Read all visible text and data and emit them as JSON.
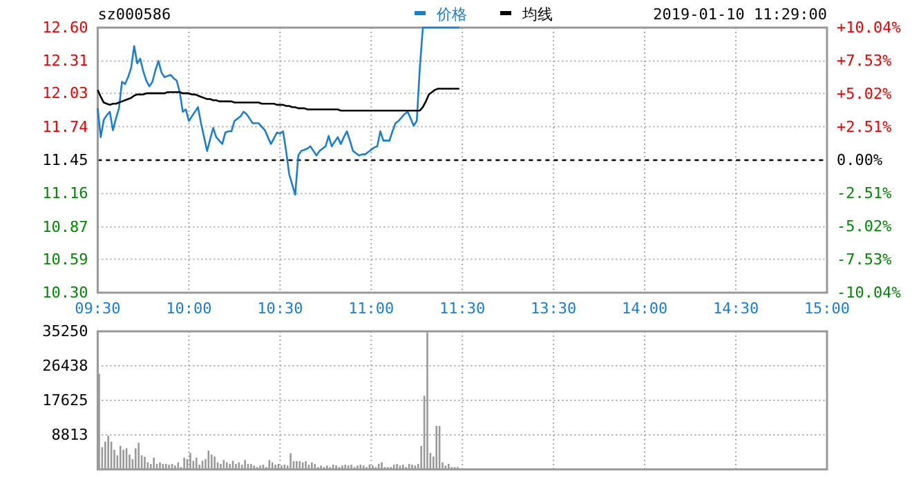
{
  "chart_data": [
    {
      "type": "line",
      "title": "sz000586",
      "subtitle": "2019-01-10 11:29:00",
      "legend": "top",
      "categories": [
        "09:30",
        null,
        null,
        null,
        null,
        null,
        null,
        null,
        null,
        null,
        null,
        null,
        null,
        null,
        null,
        null,
        null,
        null,
        null,
        null,
        null,
        null,
        null,
        null,
        null,
        null,
        null,
        null,
        null,
        null,
        "10:00",
        null,
        null,
        null,
        null,
        null,
        null,
        null,
        null,
        null,
        null,
        null,
        null,
        null,
        null,
        null,
        null,
        null,
        null,
        null,
        null,
        null,
        null,
        null,
        null,
        null,
        null,
        null,
        null,
        null,
        "10:30",
        null,
        null,
        null,
        null,
        null,
        null,
        null,
        null,
        null,
        null,
        null,
        null,
        null,
        null,
        null,
        null,
        null,
        null,
        null,
        null,
        null,
        null,
        null,
        null,
        null,
        null,
        null,
        null,
        null,
        "11:00",
        null,
        null,
        null,
        null,
        null,
        null,
        null,
        null,
        null,
        null,
        null,
        null,
        null,
        null,
        null,
        null,
        null,
        null,
        null,
        null,
        null,
        null,
        null,
        null,
        null,
        null,
        null,
        null,
        null,
        "11:30",
        null,
        null,
        null,
        null,
        null,
        null,
        null,
        null,
        null,
        null,
        null,
        null,
        null,
        null,
        null,
        null,
        null,
        null,
        null,
        null,
        null,
        null,
        null,
        null,
        null,
        null,
        null,
        null,
        null,
        "13:30",
        null,
        null,
        null,
        null,
        null,
        null,
        null,
        null,
        null,
        null,
        null,
        null,
        null,
        null,
        null,
        null,
        null,
        null,
        null,
        null,
        null,
        null,
        null,
        null,
        null,
        null,
        null,
        null,
        null,
        "14:00",
        null,
        null,
        null,
        null,
        null,
        null,
        null,
        null,
        null,
        null,
        null,
        null,
        null,
        null,
        null,
        null,
        null,
        null,
        null,
        null,
        null,
        null,
        null,
        null,
        null,
        null,
        null,
        null,
        null,
        "14:30",
        null,
        null,
        null,
        null,
        null,
        null,
        null,
        null,
        null,
        null,
        null,
        null,
        null,
        null,
        null,
        null,
        null,
        null,
        null,
        null,
        null,
        null,
        null,
        null,
        null,
        null,
        null,
        null,
        null,
        "15:00"
      ],
      "ylim": [
        10.3,
        12.6
      ],
      "yticks": [
        {
          "value": 10.3,
          "label": "10.30"
        },
        10.59,
        10.87,
        11.16,
        11.45,
        11.74,
        12.03,
        12.31,
        {
          "value": 12.6,
          "label": "12.60"
        }
      ],
      "y2lim": [
        -10.04,
        10.04
      ],
      "y2ticks": [
        {
          "value": -10.04,
          "label": "-10.04%"
        },
        {
          "value": -7.53,
          "label": "-7.53%"
        },
        {
          "value": -5.02,
          "label": "-5.02%"
        },
        {
          "value": -2.51,
          "label": "-2.51%"
        },
        {
          "value": 0,
          "label": "0.00%"
        },
        {
          "value": 2.51,
          "label": "+2.51%"
        },
        {
          "value": 5.02,
          "label": "+5.02%"
        },
        {
          "value": 7.53,
          "label": "+7.53%"
        },
        {
          "value": 10.04,
          "label": "+10.04%"
        }
      ],
      "grid": true,
      "ref_lines": [
        {
          "axis": "y",
          "value": 11.45,
          "color": "#000000",
          "line_style": "dashed"
        }
      ],
      "series": [
        {
          "name": "价格",
          "color": "#1a7fd0",
          "values": [
            11.9,
            11.65,
            11.8,
            11.84,
            11.87,
            11.71,
            11.81,
            11.9,
            12.13,
            12.11,
            12.17,
            12.25,
            12.44,
            12.29,
            12.33,
            12.22,
            12.14,
            12.09,
            12.13,
            12.23,
            12.31,
            12.21,
            12.17,
            12.18,
            12.19,
            12.16,
            12.14,
            12.04,
            11.87,
            11.89,
            11.79,
            11.83,
            11.87,
            11.91,
            11.77,
            11.65,
            11.53,
            11.63,
            11.73,
            11.65,
            11.62,
            11.59,
            11.69,
            11.7,
            11.7,
            11.79,
            11.81,
            11.83,
            11.87,
            11.85,
            11.81,
            11.77,
            11.77,
            11.77,
            11.74,
            11.71,
            11.65,
            11.59,
            11.64,
            11.69,
            11.68,
            11.7,
            11.53,
            11.33,
            11.24,
            11.15,
            11.49,
            11.53,
            11.54,
            11.55,
            11.57,
            11.53,
            11.49,
            11.53,
            11.55,
            11.57,
            11.66,
            11.57,
            11.61,
            11.65,
            11.59,
            11.65,
            11.7,
            11.62,
            11.53,
            11.51,
            11.49,
            11.5,
            11.5,
            11.52,
            11.54,
            11.56,
            11.57,
            11.7,
            11.62,
            11.62,
            11.62,
            11.7,
            11.77,
            11.79,
            11.82,
            11.85,
            11.87,
            11.81,
            11.75,
            11.79,
            12.25,
            12.6,
            12.6,
            12.6,
            12.6,
            12.6,
            12.6,
            12.6,
            12.6,
            12.6,
            12.6,
            12.6,
            12.6,
            12.6,
            null,
            null,
            null,
            null,
            null,
            null,
            null,
            null,
            null,
            null,
            null,
            null,
            null,
            null,
            null,
            null,
            null,
            null,
            null,
            null,
            null,
            null,
            null,
            null,
            null,
            null,
            null,
            null,
            null,
            null,
            null,
            null,
            null,
            null,
            null,
            null,
            null,
            null,
            null,
            null,
            null,
            null,
            null,
            null,
            null,
            null,
            null,
            null,
            null,
            null,
            null,
            null,
            null,
            null,
            null,
            null,
            null,
            null,
            null,
            null,
            null,
            null,
            null,
            null,
            null,
            null,
            null,
            null,
            null,
            null,
            null,
            null,
            null,
            null,
            null,
            null,
            null,
            null,
            null,
            null,
            null,
            null,
            null,
            null,
            null,
            null,
            null,
            null,
            null,
            null,
            null,
            null,
            null,
            null,
            null,
            null,
            null,
            null,
            null,
            null,
            null,
            null,
            null,
            null,
            null,
            null,
            null,
            null,
            null,
            null,
            null,
            null,
            null,
            null,
            null,
            null,
            null,
            null,
            null,
            null,
            null
          ]
        },
        {
          "name": "均线",
          "color": "#000000",
          "values": [
            12.06,
            12.0,
            11.95,
            11.94,
            11.93,
            11.94,
            11.94,
            11.95,
            11.96,
            11.97,
            11.98,
            11.99,
            12.01,
            12.02,
            12.02,
            12.02,
            12.03,
            12.03,
            12.03,
            12.03,
            12.03,
            12.03,
            12.03,
            12.04,
            12.04,
            12.04,
            12.04,
            12.04,
            12.03,
            12.03,
            12.03,
            12.02,
            12.02,
            12.01,
            12.0,
            11.99,
            11.98,
            11.98,
            11.97,
            11.97,
            11.96,
            11.96,
            11.96,
            11.96,
            11.96,
            11.95,
            11.95,
            11.95,
            11.95,
            11.95,
            11.95,
            11.95,
            11.95,
            11.95,
            11.94,
            11.94,
            11.94,
            11.94,
            11.94,
            11.93,
            11.93,
            11.93,
            11.92,
            11.92,
            11.91,
            11.91,
            11.9,
            11.9,
            11.9,
            11.89,
            11.89,
            11.89,
            11.89,
            11.89,
            11.89,
            11.89,
            11.89,
            11.89,
            11.89,
            11.89,
            11.88,
            11.88,
            11.88,
            11.88,
            11.88,
            11.88,
            11.88,
            11.88,
            11.88,
            11.88,
            11.88,
            11.88,
            11.88,
            11.88,
            11.88,
            11.88,
            11.88,
            11.88,
            11.88,
            11.88,
            11.88,
            11.88,
            11.88,
            11.88,
            11.88,
            11.88,
            11.88,
            11.91,
            11.96,
            12.02,
            12.04,
            12.06,
            12.07,
            12.07,
            12.07,
            12.07,
            12.07,
            12.07,
            12.07,
            12.07,
            null,
            null,
            null,
            null,
            null,
            null,
            null,
            null,
            null,
            null,
            null,
            null,
            null,
            null,
            null,
            null,
            null,
            null,
            null,
            null,
            null,
            null,
            null,
            null,
            null,
            null,
            null,
            null,
            null,
            null,
            null,
            null,
            null,
            null,
            null,
            null,
            null,
            null,
            null,
            null,
            null,
            null,
            null,
            null,
            null,
            null,
            null,
            null,
            null,
            null,
            null,
            null,
            null,
            null,
            null,
            null,
            null,
            null,
            null,
            null,
            null,
            null,
            null,
            null,
            null,
            null,
            null,
            null,
            null,
            null,
            null,
            null,
            null,
            null,
            null,
            null,
            null,
            null,
            null,
            null,
            null,
            null,
            null,
            null,
            null,
            null,
            null,
            null,
            null,
            null,
            null,
            null,
            null,
            null,
            null,
            null,
            null,
            null,
            null,
            null,
            null,
            null,
            null,
            null,
            null,
            null,
            null,
            null,
            null,
            null,
            null,
            null,
            null,
            null,
            null,
            null,
            null,
            null,
            null,
            null,
            null
          ]
        }
      ]
    },
    {
      "type": "bar",
      "tick_labels": "y",
      "color": "#999999",
      "grid": true,
      "categories": [
        null,
        null,
        null,
        null,
        null,
        null,
        null,
        null,
        null,
        null,
        null,
        null,
        null,
        null,
        null,
        null,
        null,
        null,
        null,
        null,
        null,
        null,
        null,
        null,
        null,
        null,
        null,
        null,
        null,
        null,
        null,
        null,
        null,
        null,
        null,
        null,
        null,
        null,
        null,
        null,
        null,
        null,
        null,
        null,
        null,
        null,
        null,
        null,
        null,
        null,
        null,
        null,
        null,
        null,
        null,
        null,
        null,
        null,
        null,
        null,
        null,
        null,
        null,
        null,
        null,
        null,
        null,
        null,
        null,
        null,
        null,
        null,
        null,
        null,
        null,
        null,
        null,
        null,
        null,
        null,
        null,
        null,
        null,
        null,
        null,
        null,
        null,
        null,
        null,
        null,
        null,
        null,
        null,
        null,
        null,
        null,
        null,
        null,
        null,
        null,
        null,
        null,
        null,
        null,
        null,
        null,
        null,
        null,
        null,
        null,
        null,
        null,
        null,
        null,
        null,
        null,
        null,
        null,
        null,
        null,
        null,
        null,
        null,
        null,
        null,
        null,
        null,
        null,
        null,
        null,
        null,
        null,
        null,
        null,
        null,
        null,
        null,
        null,
        null,
        null,
        null,
        null,
        null,
        null,
        null,
        null,
        null,
        null,
        null,
        null,
        null,
        null,
        null,
        null,
        null,
        null,
        null,
        null,
        null,
        null,
        null,
        null,
        null,
        null,
        null,
        null,
        null,
        null,
        null,
        null,
        null,
        null,
        null,
        null,
        null,
        null,
        null,
        null,
        null,
        null,
        null,
        null,
        null,
        null,
        null,
        null,
        null,
        null,
        null,
        null,
        null,
        null,
        null,
        null,
        null,
        null,
        null,
        null,
        null,
        null,
        null,
        null,
        null,
        null,
        null,
        null,
        null,
        null,
        null,
        null,
        null,
        null,
        null,
        null,
        null,
        null,
        null,
        null,
        null,
        null,
        null,
        null,
        null,
        null,
        null,
        null,
        null,
        null,
        null,
        null,
        null,
        null,
        null,
        null,
        null,
        null,
        null,
        null,
        null,
        null,
        null
      ],
      "ylim": [
        0,
        35250
      ],
      "yticks": [
        8813,
        17625,
        26438,
        35250
      ],
      "values": [
        24400,
        5700,
        7100,
        8600,
        7100,
        5000,
        3600,
        6000,
        5000,
        5400,
        3800,
        2600,
        5400,
        6800,
        3600,
        3200,
        1800,
        1400,
        3000,
        1400,
        1800,
        1400,
        1400,
        1200,
        1400,
        1000,
        1800,
        600,
        3000,
        2600,
        4200,
        2200,
        3000,
        1200,
        2200,
        2600,
        4800,
        3800,
        3300,
        1800,
        1400,
        2400,
        1800,
        1400,
        2200,
        1400,
        1800,
        1200,
        2400,
        1400,
        1400,
        1000,
        600,
        1000,
        1200,
        600,
        2400,
        1800,
        1200,
        1400,
        1000,
        1200,
        1000,
        4100,
        2100,
        2100,
        2100,
        1800,
        2100,
        1200,
        1800,
        1400,
        600,
        1000,
        600,
        1000,
        600,
        1200,
        1000,
        600,
        1000,
        1200,
        1000,
        1200,
        600,
        1000,
        1200,
        1000,
        600,
        1200,
        1000,
        600,
        1400,
        1800,
        600,
        600,
        600,
        1200,
        1400,
        1000,
        1200,
        600,
        1400,
        1200,
        1000,
        1400,
        6000,
        18800,
        35000,
        4200,
        3300,
        11100,
        11100,
        1800,
        1000,
        1400,
        600,
        600,
        600,
        null,
        null,
        null,
        null,
        null,
        null,
        null,
        null,
        null,
        null,
        null,
        null,
        null,
        null,
        null,
        null,
        null,
        null,
        null,
        null,
        null,
        null,
        null,
        null,
        null,
        null,
        null,
        null,
        null,
        null,
        null,
        null,
        null,
        null,
        null,
        null,
        null,
        null,
        null,
        null,
        null,
        null,
        null,
        null,
        null,
        null,
        null,
        null,
        null,
        null,
        null,
        null,
        null,
        null,
        null,
        null,
        null,
        null,
        null,
        null,
        null,
        null,
        null,
        null,
        null,
        null,
        null,
        null,
        null,
        null,
        null,
        null,
        null,
        null,
        null,
        null,
        null,
        null,
        null,
        null,
        null,
        null,
        null,
        null,
        null,
        null,
        null,
        null,
        null,
        null,
        null,
        null,
        null,
        null,
        null,
        null,
        null,
        null,
        null,
        null,
        null,
        null,
        null,
        null,
        null,
        null,
        null,
        null,
        null,
        null,
        null,
        null,
        null,
        null,
        null,
        null,
        null,
        null,
        null,
        null,
        null,
        null
      ]
    }
  ]
}
